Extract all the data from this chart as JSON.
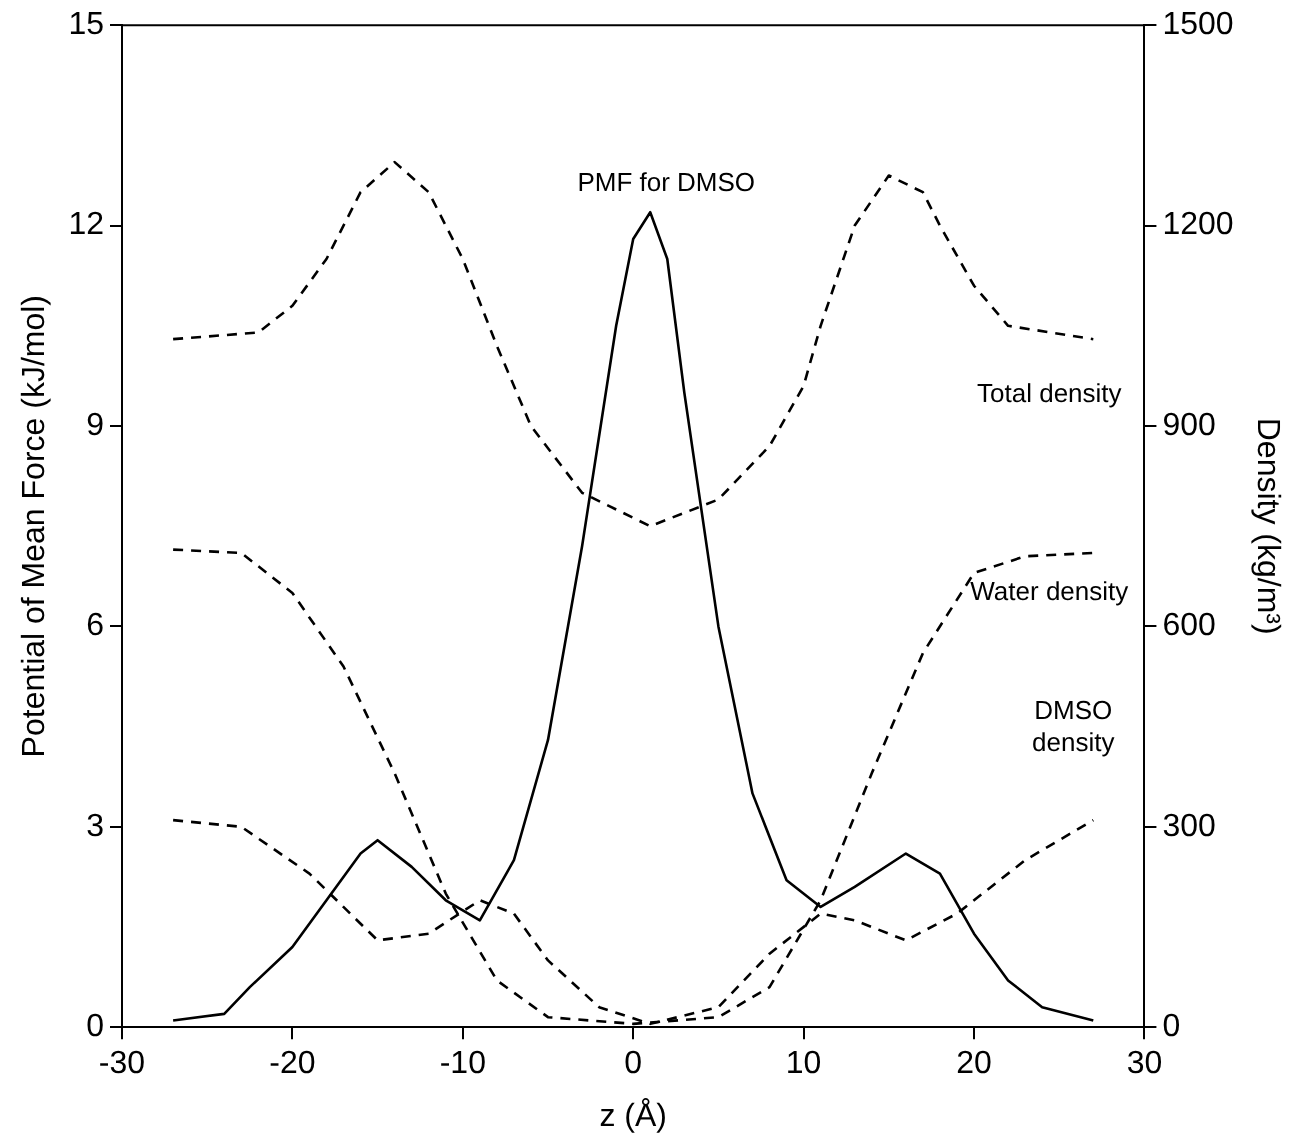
{
  "chart_data": {
    "type": "line",
    "xlabel": "z (Å)",
    "ylabel": "Potential of Mean Force (kJ/mol)",
    "y2label": "Density (kg/m³)",
    "xlim": [
      -30,
      30
    ],
    "xticks": [
      -30,
      -20,
      -10,
      0,
      10,
      20,
      30
    ],
    "ylim": [
      0,
      15
    ],
    "yticks": [
      0,
      3,
      6,
      9,
      12,
      15
    ],
    "y2lim": [
      0,
      1500
    ],
    "y2ticks": [
      0,
      300,
      600,
      900,
      1200,
      1500
    ],
    "grid": false,
    "legend": false,
    "marker": "none",
    "series": [
      {
        "name": "PMF for DMSO",
        "color": "#000000",
        "line_style": "solid",
        "x": [
          -27,
          -24,
          -22.5,
          -20,
          -18,
          -16,
          -15,
          -13,
          -11,
          -9,
          -7,
          -5,
          -3,
          -1,
          0,
          1,
          2,
          3,
          5,
          7,
          9,
          11,
          13,
          16,
          18,
          20,
          22,
          24,
          27
        ],
        "values": [
          0.1,
          0.2,
          0.6,
          1.2,
          1.9,
          2.6,
          2.8,
          2.4,
          1.9,
          1.6,
          2.5,
          4.3,
          7.2,
          10.5,
          11.8,
          12.2,
          11.5,
          9.5,
          6,
          3.5,
          2.2,
          1.8,
          2.1,
          2.6,
          2.3,
          1.4,
          0.7,
          0.3,
          0.1
        ]
      },
      {
        "name": "Total density",
        "color": "#000000",
        "line_style": "dashed",
        "axis": "y2",
        "x": [
          -27,
          -22,
          -20,
          -18,
          -16,
          -14,
          -12,
          -10,
          -8,
          -6,
          -3,
          1,
          5,
          8,
          10,
          11,
          13,
          15,
          17,
          18,
          20,
          22,
          27
        ],
        "values": [
          1030,
          1040,
          1080,
          1150,
          1250,
          1295,
          1250,
          1150,
          1020,
          900,
          800,
          750,
          790,
          870,
          960,
          1050,
          1200,
          1275,
          1250,
          1200,
          1110,
          1050,
          1030
        ]
      },
      {
        "name": "Water density",
        "color": "#000000",
        "line_style": "dashed",
        "axis": "y2",
        "x": [
          -27,
          -23,
          -20,
          -17,
          -14,
          -11,
          -8,
          -5,
          0,
          5,
          8,
          11,
          14,
          17,
          20,
          23,
          27
        ],
        "values": [
          715,
          710,
          650,
          540,
          380,
          200,
          70,
          15,
          5,
          15,
          60,
          190,
          380,
          560,
          680,
          705,
          710
        ]
      },
      {
        "name": "DMSO density",
        "color": "#000000",
        "line_style": "dashed",
        "axis": "y2",
        "x": [
          -27,
          -23,
          -19,
          -15,
          -12,
          -9,
          -7,
          -5,
          -2,
          1,
          5,
          8,
          11,
          13,
          16,
          19,
          23,
          27
        ],
        "values": [
          310,
          300,
          230,
          130,
          140,
          190,
          170,
          100,
          30,
          5,
          30,
          110,
          170,
          160,
          130,
          170,
          250,
          310
        ]
      }
    ]
  }
}
